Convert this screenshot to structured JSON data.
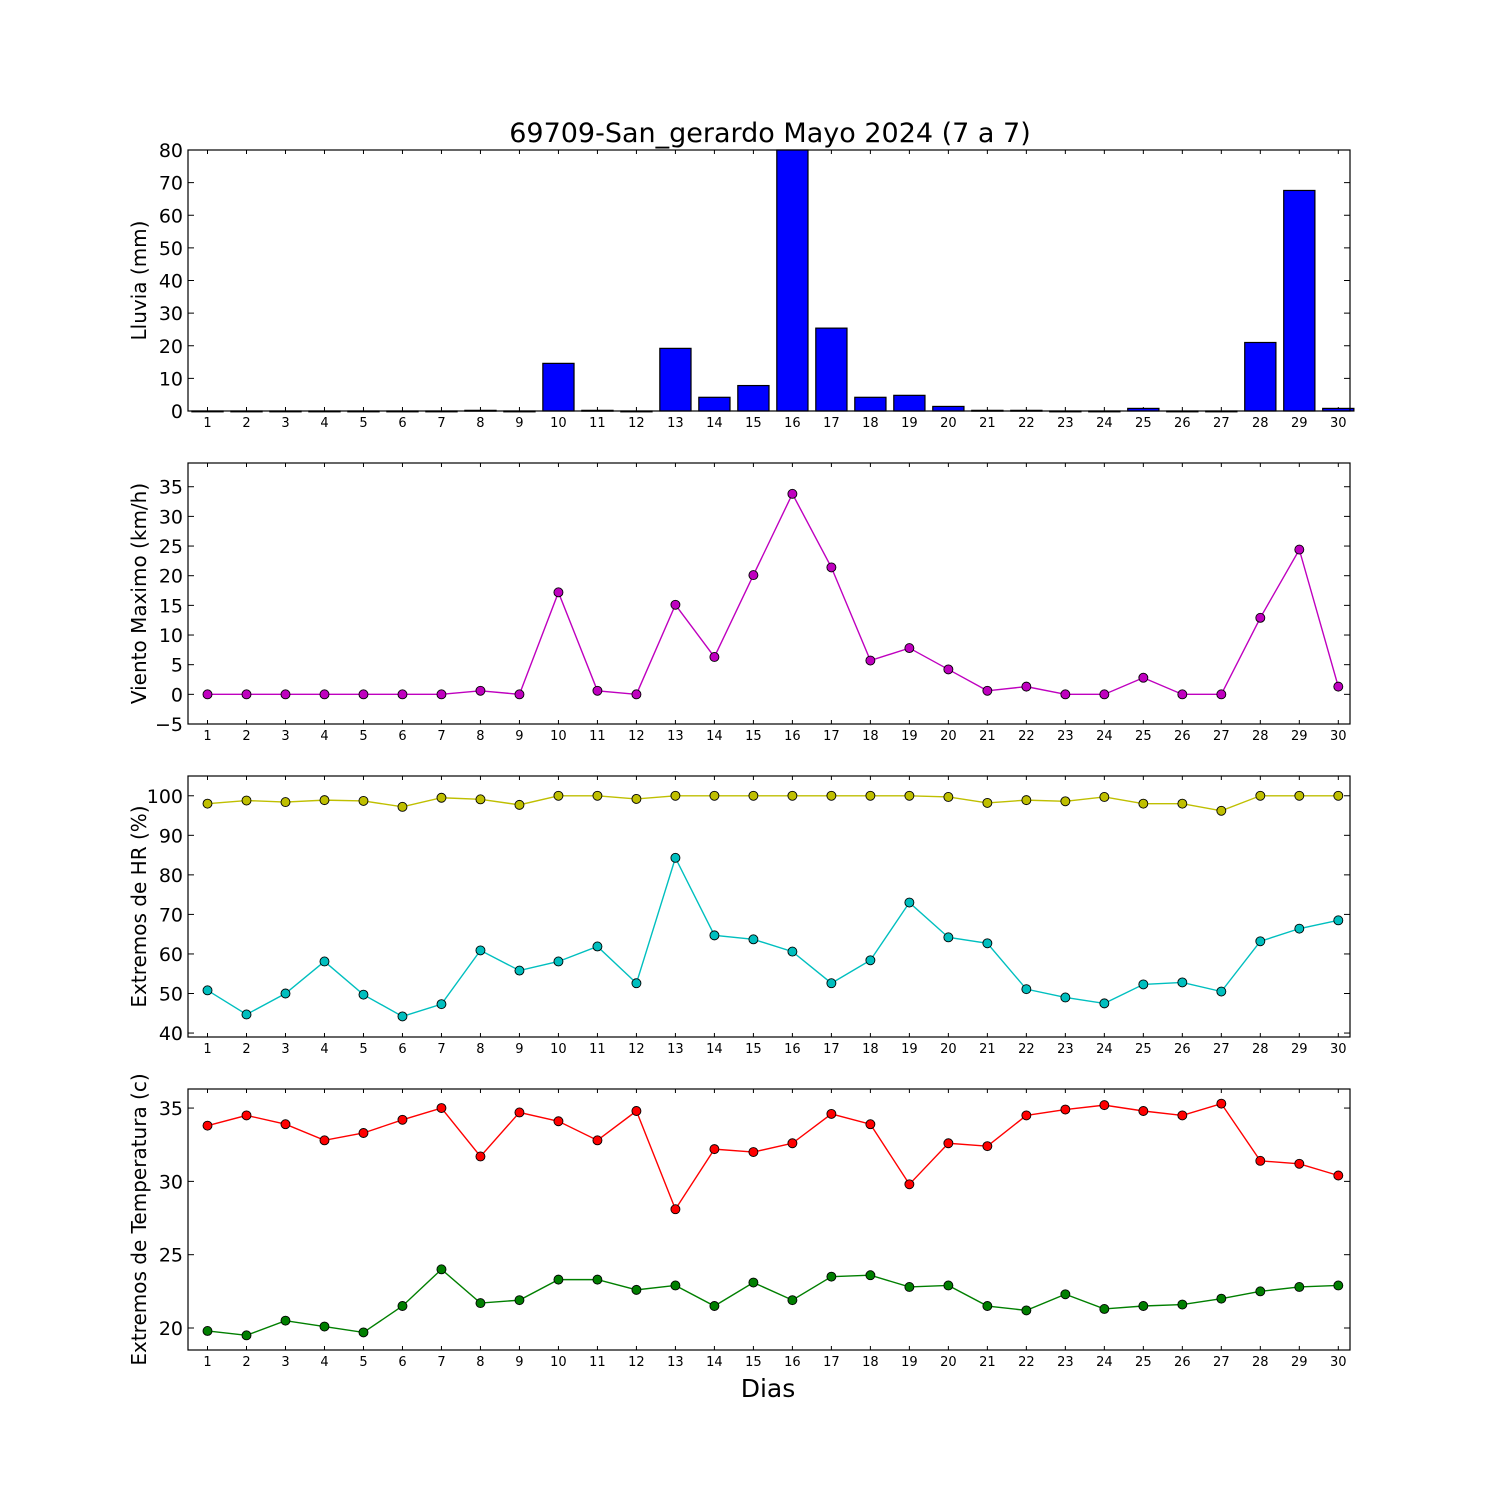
{
  "figure": {
    "title": "69709-San_gerardo Mayo 2024  (7 a 7)",
    "xlabel": "Dias"
  },
  "chart_data": [
    {
      "type": "bar",
      "ylabel": "Lluvia (mm)",
      "ylim": [
        0,
        80
      ],
      "yticks": [
        0,
        10,
        20,
        30,
        40,
        50,
        60,
        70,
        80
      ],
      "categories": [
        "1",
        "2",
        "3",
        "4",
        "5",
        "6",
        "7",
        "8",
        "9",
        "10",
        "11",
        "12",
        "13",
        "14",
        "15",
        "16",
        "17",
        "18",
        "19",
        "20",
        "21",
        "22",
        "23",
        "24",
        "25",
        "26",
        "27",
        "28",
        "29",
        "30"
      ],
      "series": [
        {
          "color": "#0000ff",
          "values": [
            0,
            0,
            0,
            0,
            0,
            0,
            0,
            0.2,
            0,
            14.6,
            0.2,
            0,
            19.2,
            4.2,
            7.8,
            80,
            25.4,
            4.2,
            4.8,
            1.4,
            0.2,
            0.2,
            0,
            0,
            0.8,
            0,
            0,
            21,
            67.6,
            0.8
          ]
        }
      ],
      "grid": false
    },
    {
      "type": "line",
      "ylabel": "Viento Maximo (km/h)",
      "ylim": [
        -5,
        39
      ],
      "yticks": [
        -5,
        0,
        5,
        10,
        15,
        20,
        25,
        30,
        35
      ],
      "categories": [
        "1",
        "2",
        "3",
        "4",
        "5",
        "6",
        "7",
        "8",
        "9",
        "10",
        "11",
        "12",
        "13",
        "14",
        "15",
        "16",
        "17",
        "18",
        "19",
        "20",
        "21",
        "22",
        "23",
        "24",
        "25",
        "26",
        "27",
        "28",
        "29",
        "30"
      ],
      "series": [
        {
          "color": "#bf00bf",
          "values": [
            0,
            0,
            0,
            0,
            0,
            0,
            0,
            0.6,
            0,
            17.2,
            0.6,
            0,
            15.1,
            6.3,
            20.1,
            33.8,
            21.4,
            5.7,
            7.8,
            4.2,
            0.6,
            1.3,
            0,
            0,
            2.8,
            0,
            0,
            12.9,
            24.4,
            1.3
          ]
        }
      ],
      "grid": false
    },
    {
      "type": "line",
      "ylabel": "Extremos de HR (%)",
      "ylim": [
        39,
        105
      ],
      "yticks": [
        40,
        50,
        60,
        70,
        80,
        90,
        100
      ],
      "categories": [
        "1",
        "2",
        "3",
        "4",
        "5",
        "6",
        "7",
        "8",
        "9",
        "10",
        "11",
        "12",
        "13",
        "14",
        "15",
        "16",
        "17",
        "18",
        "19",
        "20",
        "21",
        "22",
        "23",
        "24",
        "25",
        "26",
        "27",
        "28",
        "29",
        "30"
      ],
      "series": [
        {
          "color": "#bfbf00",
          "values": [
            98,
            98.8,
            98.4,
            98.9,
            98.7,
            97.2,
            99.5,
            99.1,
            97.7,
            100,
            100,
            99.2,
            100,
            100,
            100,
            100,
            100,
            100,
            100,
            99.7,
            98.2,
            98.9,
            98.6,
            99.7,
            98,
            98,
            96.2,
            100,
            100,
            100
          ]
        },
        {
          "color": "#00bfbf",
          "values": [
            50.8,
            44.7,
            50,
            58.1,
            49.7,
            44.2,
            47.3,
            60.9,
            55.8,
            58.1,
            61.9,
            52.6,
            84.3,
            64.7,
            63.7,
            60.6,
            52.6,
            58.4,
            73,
            64.2,
            62.7,
            51.1,
            49,
            47.5,
            52.3,
            52.8,
            50.5,
            63.2,
            66.4,
            68.5
          ]
        }
      ],
      "grid": false
    },
    {
      "type": "line",
      "ylabel": "Extremos de Temperatura (c)",
      "ylim": [
        18.5,
        36.3
      ],
      "yticks": [
        20,
        25,
        30,
        35
      ],
      "categories": [
        "1",
        "2",
        "3",
        "4",
        "5",
        "6",
        "7",
        "8",
        "9",
        "10",
        "11",
        "12",
        "13",
        "14",
        "15",
        "16",
        "17",
        "18",
        "19",
        "20",
        "21",
        "22",
        "23",
        "24",
        "25",
        "26",
        "27",
        "28",
        "29",
        "30"
      ],
      "series": [
        {
          "color": "#ff0000",
          "values": [
            33.8,
            34.5,
            33.9,
            32.8,
            33.3,
            34.2,
            35,
            31.7,
            34.7,
            34.1,
            32.8,
            34.8,
            28.1,
            32.2,
            32,
            32.6,
            34.6,
            33.9,
            29.8,
            32.6,
            32.4,
            34.5,
            34.9,
            35.2,
            34.8,
            34.5,
            35.3,
            31.4,
            31.2,
            30.4
          ]
        },
        {
          "color": "#007f00",
          "values": [
            19.8,
            19.5,
            20.5,
            20.1,
            19.7,
            21.5,
            24,
            21.7,
            21.9,
            23.3,
            23.3,
            22.6,
            22.9,
            21.5,
            23.1,
            21.9,
            23.5,
            23.6,
            22.8,
            22.9,
            21.5,
            21.2,
            22.3,
            21.3,
            21.5,
            21.6,
            22,
            22.5,
            22.8,
            22.9
          ]
        }
      ],
      "grid": false
    }
  ]
}
